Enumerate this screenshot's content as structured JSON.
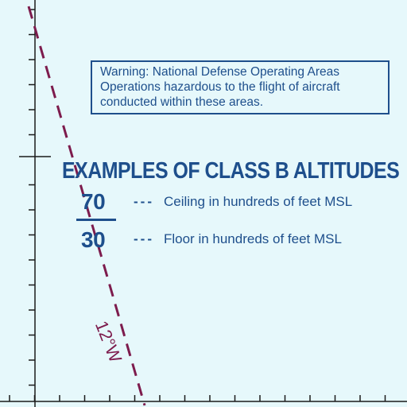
{
  "warning": {
    "lines": [
      "Warning: National Defense Operating Areas",
      "Operations hazardous to the flight of aircraft",
      "conducted within these areas."
    ]
  },
  "legend": {
    "title": "EXAMPLES OF CLASS B ALTITUDES",
    "ceiling_value": "70",
    "floor_value": "30",
    "ceiling_dashes": "---",
    "floor_dashes": "---",
    "ceiling_text": "Ceiling in hundreds of feet MSL",
    "floor_text": "Floor in hundreds of feet MSL"
  },
  "isogonic_line": {
    "label": "12°W"
  },
  "colors": {
    "background": "#e6f8fb",
    "chart_blue": "#1e4f8c",
    "isogonic_maroon": "#7d1c4d"
  }
}
